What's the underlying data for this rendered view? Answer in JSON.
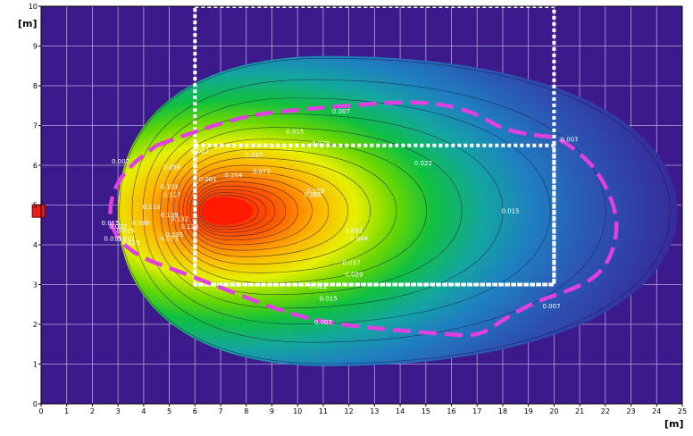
{
  "chart_data": {
    "type": "heatmap",
    "xlabel": "[m]",
    "ylabel": "[m]",
    "xlim": [
      0,
      25
    ],
    "ylim": [
      0,
      10
    ],
    "grid": true,
    "x_ticks": [
      "0",
      "1",
      "2",
      "3",
      "4",
      "5",
      "6",
      "7",
      "8",
      "9",
      "10",
      "11",
      "12",
      "13",
      "14",
      "15",
      "16",
      "17",
      "18",
      "19",
      "20",
      "21",
      "22",
      "23",
      "24",
      "25"
    ],
    "y_ticks": [
      "0",
      "1",
      "2",
      "3",
      "4",
      "5",
      "6",
      "7",
      "8",
      "9",
      "10"
    ],
    "source": {
      "x": -0.1,
      "y": 4.85,
      "color": "#e61e1e"
    },
    "plume": {
      "center": [
        6.6,
        4.85
      ],
      "front_extent": [
        18.2,
        3.9
      ],
      "back_extent": [
        3.6,
        1.9
      ],
      "peak_color": "#ff1a00",
      "background_color": "#3d1a8c"
    },
    "contour_labels": [
      {
        "text": "0.007",
        "x": 11.7,
        "y": 7.3
      },
      {
        "text": "0.007",
        "x": 20.6,
        "y": 6.6
      },
      {
        "text": "0.007",
        "x": 3.1,
        "y": 6.05
      },
      {
        "text": "0.007",
        "x": 19.9,
        "y": 2.4
      },
      {
        "text": "0.007",
        "x": 11.0,
        "y": 2.0
      },
      {
        "text": "0.015",
        "x": 9.9,
        "y": 6.8
      },
      {
        "text": "0.015",
        "x": 18.3,
        "y": 4.8
      },
      {
        "text": "0.015",
        "x": 11.2,
        "y": 2.6
      },
      {
        "text": "0.015",
        "x": 2.7,
        "y": 4.5
      },
      {
        "text": "0.015",
        "x": 2.8,
        "y": 4.1
      },
      {
        "text": "0.022",
        "x": 6.2,
        "y": 6.3
      },
      {
        "text": "0.022",
        "x": 14.9,
        "y": 6.0
      },
      {
        "text": "0.022",
        "x": 10.8,
        "y": 2.9
      },
      {
        "text": "0.022",
        "x": 3.0,
        "y": 4.4
      },
      {
        "text": "0.029",
        "x": 10.9,
        "y": 6.5
      },
      {
        "text": "0.029",
        "x": 3.3,
        "y": 4.3
      },
      {
        "text": "0.029",
        "x": 12.2,
        "y": 3.2
      },
      {
        "text": "0.029",
        "x": 3.5,
        "y": 4.0
      },
      {
        "text": "0.037",
        "x": 8.3,
        "y": 6.2
      },
      {
        "text": "0.037",
        "x": 12.1,
        "y": 3.5
      },
      {
        "text": "0.037",
        "x": 3.3,
        "y": 4.1
      },
      {
        "text": "0.044",
        "x": 12.4,
        "y": 4.1
      },
      {
        "text": "0.051",
        "x": 12.2,
        "y": 4.3
      },
      {
        "text": "0.058",
        "x": 5.1,
        "y": 5.9
      },
      {
        "text": "0.066",
        "x": 10.6,
        "y": 5.2
      },
      {
        "text": "0.073",
        "x": 8.6,
        "y": 5.8
      },
      {
        "text": "0.073",
        "x": 5.0,
        "y": 4.1
      },
      {
        "text": "0.081",
        "x": 6.5,
        "y": 5.6
      },
      {
        "text": "0.088",
        "x": 3.9,
        "y": 4.5
      },
      {
        "text": "0.095",
        "x": 5.2,
        "y": 4.2
      },
      {
        "text": "0.103",
        "x": 5.0,
        "y": 5.4
      },
      {
        "text": "0.110",
        "x": 4.3,
        "y": 4.9
      },
      {
        "text": "0.117",
        "x": 5.1,
        "y": 5.2
      },
      {
        "text": "0.125",
        "x": 5.8,
        "y": 4.4
      },
      {
        "text": "0.132",
        "x": 5.4,
        "y": 4.6
      },
      {
        "text": "0.139",
        "x": 5.0,
        "y": 4.7
      },
      {
        "text": "0.259",
        "x": 10.7,
        "y": 5.3
      },
      {
        "text": "0.264",
        "x": 7.5,
        "y": 5.7
      }
    ],
    "measurement_regions": [
      {
        "x": [
          6,
          20
        ],
        "y": [
          3,
          10
        ],
        "style": "dotted",
        "color": "#ffffff"
      },
      {
        "x": [
          6,
          20
        ],
        "y": [
          3,
          6.5
        ],
        "style": "dotted",
        "color": "#ffffff"
      }
    ],
    "boundary": {
      "style": "dashed",
      "color": "#e040e0",
      "points": [
        [
          4.5,
          6.5
        ],
        [
          6.0,
          6.85
        ],
        [
          8.0,
          7.25
        ],
        [
          10.0,
          7.4
        ],
        [
          12.0,
          7.5
        ],
        [
          14.0,
          7.6
        ],
        [
          15.6,
          7.55
        ],
        [
          17.0,
          7.3
        ],
        [
          18.0,
          6.9
        ],
        [
          19.3,
          6.75
        ],
        [
          20.2,
          6.7
        ],
        [
          21.4,
          6.1
        ],
        [
          22.1,
          5.4
        ],
        [
          22.5,
          4.6
        ],
        [
          22.3,
          3.8
        ],
        [
          21.7,
          3.2
        ],
        [
          20.6,
          2.85
        ],
        [
          19.4,
          2.6
        ],
        [
          18.2,
          2.2
        ],
        [
          17.1,
          1.7
        ],
        [
          15.8,
          1.75
        ],
        [
          13.0,
          1.9
        ],
        [
          11.0,
          2.05
        ],
        [
          9.3,
          2.35
        ],
        [
          7.5,
          2.8
        ],
        [
          5.5,
          3.3
        ],
        [
          3.6,
          3.75
        ],
        [
          2.7,
          4.4
        ],
        [
          2.7,
          5.2
        ],
        [
          3.3,
          5.9
        ],
        [
          4.5,
          6.5
        ]
      ]
    }
  }
}
